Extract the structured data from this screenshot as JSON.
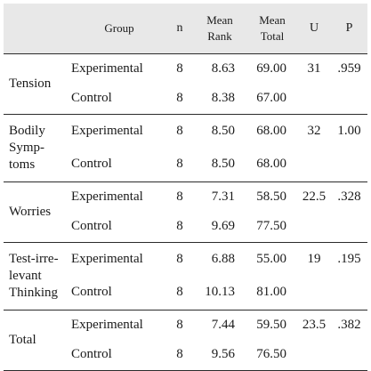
{
  "table": {
    "headers": {
      "category": "",
      "group": "Group",
      "n": "n",
      "mean_rank_line1": "Mean",
      "mean_rank_line2": "Rank",
      "mean_total_line1": "Mean",
      "mean_total_line2": "Total",
      "u": "U",
      "p": "P"
    },
    "rows": [
      {
        "category": "Tension",
        "experimental": {
          "group": "Experimental",
          "n": "8",
          "mean_rank": "8.63",
          "mean_total": "69.00"
        },
        "control": {
          "group": "Control",
          "n": "8",
          "mean_rank": "8.38",
          "mean_total": "67.00"
        },
        "u": "31",
        "p": ".959"
      },
      {
        "category": "Bodily\nSymp-\ntoms",
        "experimental": {
          "group": "Experimental",
          "n": "8",
          "mean_rank": "8.50",
          "mean_total": "68.00"
        },
        "control": {
          "group": "Control",
          "n": "8",
          "mean_rank": "8.50",
          "mean_total": "68.00"
        },
        "u": "32",
        "p": "1.00"
      },
      {
        "category": "Worries",
        "experimental": {
          "group": "Experimental",
          "n": "8",
          "mean_rank": "7.31",
          "mean_total": "58.50"
        },
        "control": {
          "group": "Control",
          "n": "8",
          "mean_rank": "9.69",
          "mean_total": "77.50"
        },
        "u": "22.5",
        "p": ".328"
      },
      {
        "category": "Test-irre-\nlevant\nThinking",
        "experimental": {
          "group": "Experimental",
          "n": "8",
          "mean_rank": "6.88",
          "mean_total": "55.00"
        },
        "control": {
          "group": "Control",
          "n": "8",
          "mean_rank": "10.13",
          "mean_total": "81.00"
        },
        "u": "19",
        "p": ".195"
      },
      {
        "category": "Total",
        "experimental": {
          "group": "Experimental",
          "n": "8",
          "mean_rank": "7.44",
          "mean_total": "59.50"
        },
        "control": {
          "group": "Control",
          "n": "8",
          "mean_rank": "9.56",
          "mean_total": "76.50"
        },
        "u": "23.5",
        "p": ".382"
      }
    ]
  }
}
